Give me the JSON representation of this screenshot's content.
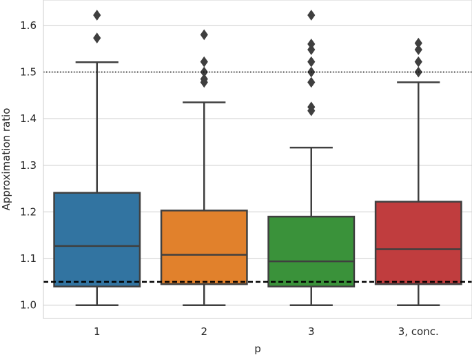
{
  "chart_data": {
    "type": "boxplot",
    "xlabel": "p",
    "ylabel": "Approximation ratio",
    "ylim": [
      0.9715,
      1.6545
    ],
    "yticks": [
      "1.0",
      "1.1",
      "1.2",
      "1.3",
      "1.4",
      "1.5",
      "1.6"
    ],
    "grid": "horizontal",
    "categories": [
      "1",
      "2",
      "3",
      "3, conc."
    ],
    "colors": [
      "#3274a1",
      "#e1812c",
      "#3a923a",
      "#c03d3e"
    ],
    "boxes": [
      {
        "category": "1",
        "whisker_low": 1.0,
        "q1": 1.04,
        "median": 1.127,
        "q3": 1.241,
        "whisker_high": 1.521,
        "outliers": [
          1.573,
          1.622
        ]
      },
      {
        "category": "2",
        "whisker_low": 1.0,
        "q1": 1.045,
        "median": 1.108,
        "q3": 1.203,
        "whisker_high": 1.435,
        "outliers": [
          1.478,
          1.485,
          1.5,
          1.522,
          1.58
        ]
      },
      {
        "category": "3",
        "whisker_low": 1.0,
        "q1": 1.04,
        "median": 1.094,
        "q3": 1.19,
        "whisker_high": 1.338,
        "outliers": [
          1.417,
          1.425,
          1.478,
          1.5,
          1.522,
          1.548,
          1.56,
          1.622
        ]
      },
      {
        "category": "3, conc.",
        "whisker_low": 1.0,
        "q1": 1.045,
        "median": 1.12,
        "q3": 1.222,
        "whisker_high": 1.478,
        "outliers": [
          1.5,
          1.522,
          1.548,
          1.562
        ]
      }
    ],
    "reference_lines": [
      {
        "y": 1.5,
        "style": "dotted"
      },
      {
        "y": 1.05,
        "style": "dashed"
      }
    ]
  }
}
